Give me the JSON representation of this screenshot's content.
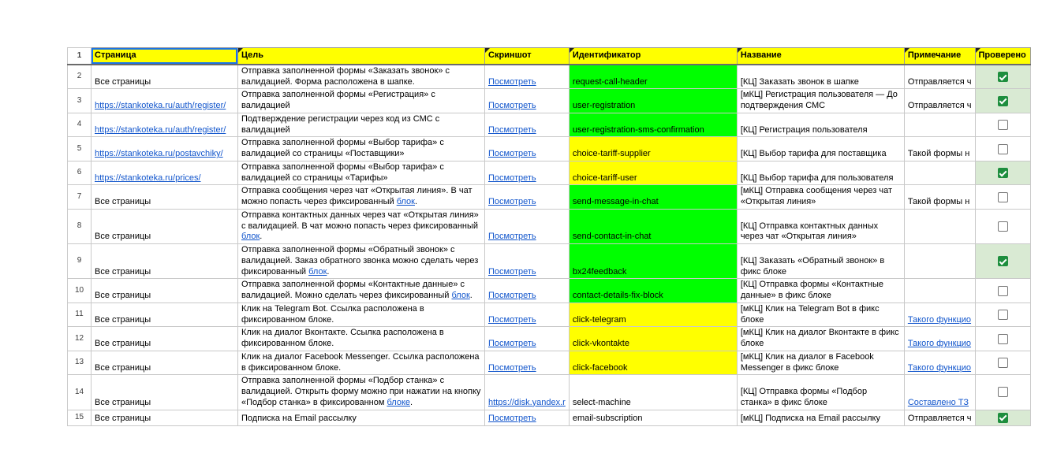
{
  "colors": {
    "header_bg": "#ffff00",
    "id_green": "#00ff00",
    "id_yellow": "#ffff00",
    "checked_row_bg": "#d9ead3",
    "checkbox_checked": "#1e8e3e",
    "link": "#1155cc",
    "selection_border": "#1a73e8"
  },
  "sheet": {
    "header_row_num": "1",
    "columns": [
      "Страница",
      "Цель",
      "Скриншот",
      "Идентификатор",
      "Название",
      "Примечание",
      "Проверено"
    ],
    "rows": [
      {
        "num": "2",
        "page": {
          "text": "Все страницы",
          "link": false
        },
        "goal": [
          {
            "text": "Отправка заполненной формы «Заказать звонок» с валидацией. Форма расположена в шапке.",
            "link": false
          }
        ],
        "screenshot": {
          "text": "Посмотреть",
          "link": true
        },
        "id": {
          "text": "request-call-header",
          "bg": "green"
        },
        "name": "[КЦ] Заказать звонок в шапке",
        "note": {
          "text": "Отправляется ч",
          "link": false
        },
        "checked": true
      },
      {
        "num": "3",
        "page": {
          "text": "https://stankoteka.ru/auth/register/",
          "link": true
        },
        "goal": [
          {
            "text": "Отправка заполненной формы «Регистрация» с валидацией",
            "link": false
          }
        ],
        "screenshot": {
          "text": "Посмотреть",
          "link": true
        },
        "id": {
          "text": "user-registration",
          "bg": "green"
        },
        "name": "[мКЦ] Регистрация пользователя — До подтверждения СМС",
        "note": {
          "text": "Отправляется ч",
          "link": false
        },
        "checked": true
      },
      {
        "num": "4",
        "page": {
          "text": "https://stankoteka.ru/auth/register/",
          "link": true
        },
        "goal": [
          {
            "text": "Подтверждение регистрации через код из СМС с валидацией",
            "link": false
          }
        ],
        "screenshot": {
          "text": "Посмотреть",
          "link": true
        },
        "id": {
          "text": "user-registration-sms-confirmation",
          "bg": "green"
        },
        "name": "[КЦ] Регистрация пользователя",
        "note": {
          "text": "",
          "link": false
        },
        "checked": false
      },
      {
        "num": "5",
        "page": {
          "text": "https://stankoteka.ru/postavchiky/",
          "link": true
        },
        "goal": [
          {
            "text": "Отправка заполненной формы «Выбор тарифа» с валидацией со страницы «Поставщики»",
            "link": false
          }
        ],
        "screenshot": {
          "text": "Посмотреть",
          "link": true
        },
        "id": {
          "text": "choice-tariff-supplier",
          "bg": "yellow"
        },
        "name": "[КЦ] Выбор тарифа для поставщика",
        "note": {
          "text": "Такой формы н",
          "link": false
        },
        "checked": false
      },
      {
        "num": "6",
        "page": {
          "text": "https://stankoteka.ru/prices/",
          "link": true
        },
        "goal": [
          {
            "text": "Отправка заполненной формы «Выбор тарифа» с валидацией со страницы «Тарифы»",
            "link": false
          }
        ],
        "screenshot": {
          "text": "Посмотреть",
          "link": true
        },
        "id": {
          "text": "choice-tariff-user",
          "bg": "yellow"
        },
        "name": "[КЦ] Выбор тарифа для пользователя",
        "note": {
          "text": "",
          "link": false
        },
        "checked": true
      },
      {
        "num": "7",
        "page": {
          "text": "Все страницы",
          "link": false
        },
        "goal": [
          {
            "text": "Отправка сообщения через чат «Открытая линия». В чат можно попасть через фиксированный ",
            "link": false
          },
          {
            "text": "блок",
            "link": true
          },
          {
            "text": ".",
            "link": false
          }
        ],
        "screenshot": {
          "text": "Посмотреть",
          "link": true
        },
        "id": {
          "text": "send-message-in-chat",
          "bg": "green"
        },
        "name": "[мКЦ] Отправка сообщения через чат «Открытая линия»",
        "note": {
          "text": "Такой формы н",
          "link": false
        },
        "checked": false
      },
      {
        "num": "8",
        "page": {
          "text": "Все страницы",
          "link": false
        },
        "goal": [
          {
            "text": "Отправка контактных данных через чат «Открытая линия» с валидацией. В чат можно попасть через фиксированный ",
            "link": false
          },
          {
            "text": "блок",
            "link": true
          },
          {
            "text": ".",
            "link": false
          }
        ],
        "screenshot": {
          "text": "Посмотреть",
          "link": true
        },
        "id": {
          "text": "send-contact-in-chat",
          "bg": "green"
        },
        "name": "[КЦ] Отправка контактных данных через чат «Открытая линия»",
        "note": {
          "text": "",
          "link": false
        },
        "checked": false
      },
      {
        "num": "9",
        "page": {
          "text": "Все страницы",
          "link": false
        },
        "goal": [
          {
            "text": "Отправка заполненной формы «Обратный звонок» с валидацией. Заказ обратного звонка можно сделать через фиксированный ",
            "link": false
          },
          {
            "text": "блок",
            "link": true
          },
          {
            "text": ".",
            "link": false
          }
        ],
        "screenshot": {
          "text": "Посмотреть",
          "link": true
        },
        "id": {
          "text": "bx24feedback",
          "bg": "green"
        },
        "name": "[КЦ] Заказать «Обратный звонок» в фикс блоке",
        "note": {
          "text": "",
          "link": false
        },
        "checked": true
      },
      {
        "num": "10",
        "page": {
          "text": "Все страницы",
          "link": false
        },
        "goal": [
          {
            "text": "Отправка заполненной формы «Контактные данные» с валидацией. Можно сделать через фиксированный ",
            "link": false
          },
          {
            "text": "блок",
            "link": true
          },
          {
            "text": ".",
            "link": false
          }
        ],
        "screenshot": {
          "text": "Посмотреть",
          "link": true
        },
        "id": {
          "text": "contact-details-fix-block",
          "bg": "green"
        },
        "name": "[КЦ] Отправка формы «Контактные данные» в фикс блоке",
        "note": {
          "text": "",
          "link": false
        },
        "checked": false
      },
      {
        "num": "11",
        "page": {
          "text": "Все страницы",
          "link": false
        },
        "goal": [
          {
            "text": "Клик на Telegram Bot. Ссылка расположена в фиксированном блоке.",
            "link": false
          }
        ],
        "screenshot": {
          "text": "Посмотреть",
          "link": true
        },
        "id": {
          "text": "click-telegram",
          "bg": "yellow"
        },
        "name": "[мКЦ] Клик на Telegram Bot в фикс блоке",
        "note": {
          "text": "Такого функцио",
          "link": true
        },
        "checked": false
      },
      {
        "num": "12",
        "page": {
          "text": "Все страницы",
          "link": false
        },
        "goal": [
          {
            "text": "Клик на диалог Вконтакте. Ссылка расположена в фиксированном блоке.",
            "link": false
          }
        ],
        "screenshot": {
          "text": "Посмотреть",
          "link": true
        },
        "id": {
          "text": "click-vkontakte",
          "bg": "yellow"
        },
        "name": "[мКЦ] Клик на диалог Вконтакте в фикс блоке",
        "note": {
          "text": "Такого функцио",
          "link": true
        },
        "checked": false
      },
      {
        "num": "13",
        "page": {
          "text": "Все страницы",
          "link": false
        },
        "goal": [
          {
            "text": "Клик на диалог Facebook Messenger. Ссылка расположена в фиксированном блоке.",
            "link": false
          }
        ],
        "screenshot": {
          "text": "Посмотреть",
          "link": true
        },
        "id": {
          "text": "click-facebook",
          "bg": "yellow"
        },
        "name": "[мКЦ] Клик на диалог в Facebook Messenger в фикс блоке",
        "note": {
          "text": "Такого функцио",
          "link": true
        },
        "checked": false
      },
      {
        "num": "14",
        "page": {
          "text": "Все страницы",
          "link": false
        },
        "goal": [
          {
            "text": "Отправка заполненной формы «Подбор станка» с валидацией. Открыть форму можно при нажатии на кнопку «Подбор станка» в фиксированном ",
            "link": false
          },
          {
            "text": "блоке",
            "link": true
          },
          {
            "text": ".",
            "link": false
          }
        ],
        "screenshot": {
          "text": "https://disk.yandex.r",
          "link": true
        },
        "id": {
          "text": "select-machine",
          "bg": "none"
        },
        "name": "[КЦ] Отправка формы «Подбор станка» в фикс блоке",
        "note": {
          "text": "Составлено ТЗ",
          "link": true
        },
        "checked": false
      },
      {
        "num": "15",
        "page": {
          "text": "Все страницы",
          "link": false
        },
        "goal": [
          {
            "text": "Подписка на Email рассылку",
            "link": false
          }
        ],
        "screenshot": {
          "text": "Посмотреть",
          "link": true
        },
        "id": {
          "text": "email-subscription",
          "bg": "none"
        },
        "name": "[мКЦ] Подписка на Email рассылку",
        "note": {
          "text": "Отправляется ч",
          "link": false
        },
        "checked": true
      }
    ]
  }
}
